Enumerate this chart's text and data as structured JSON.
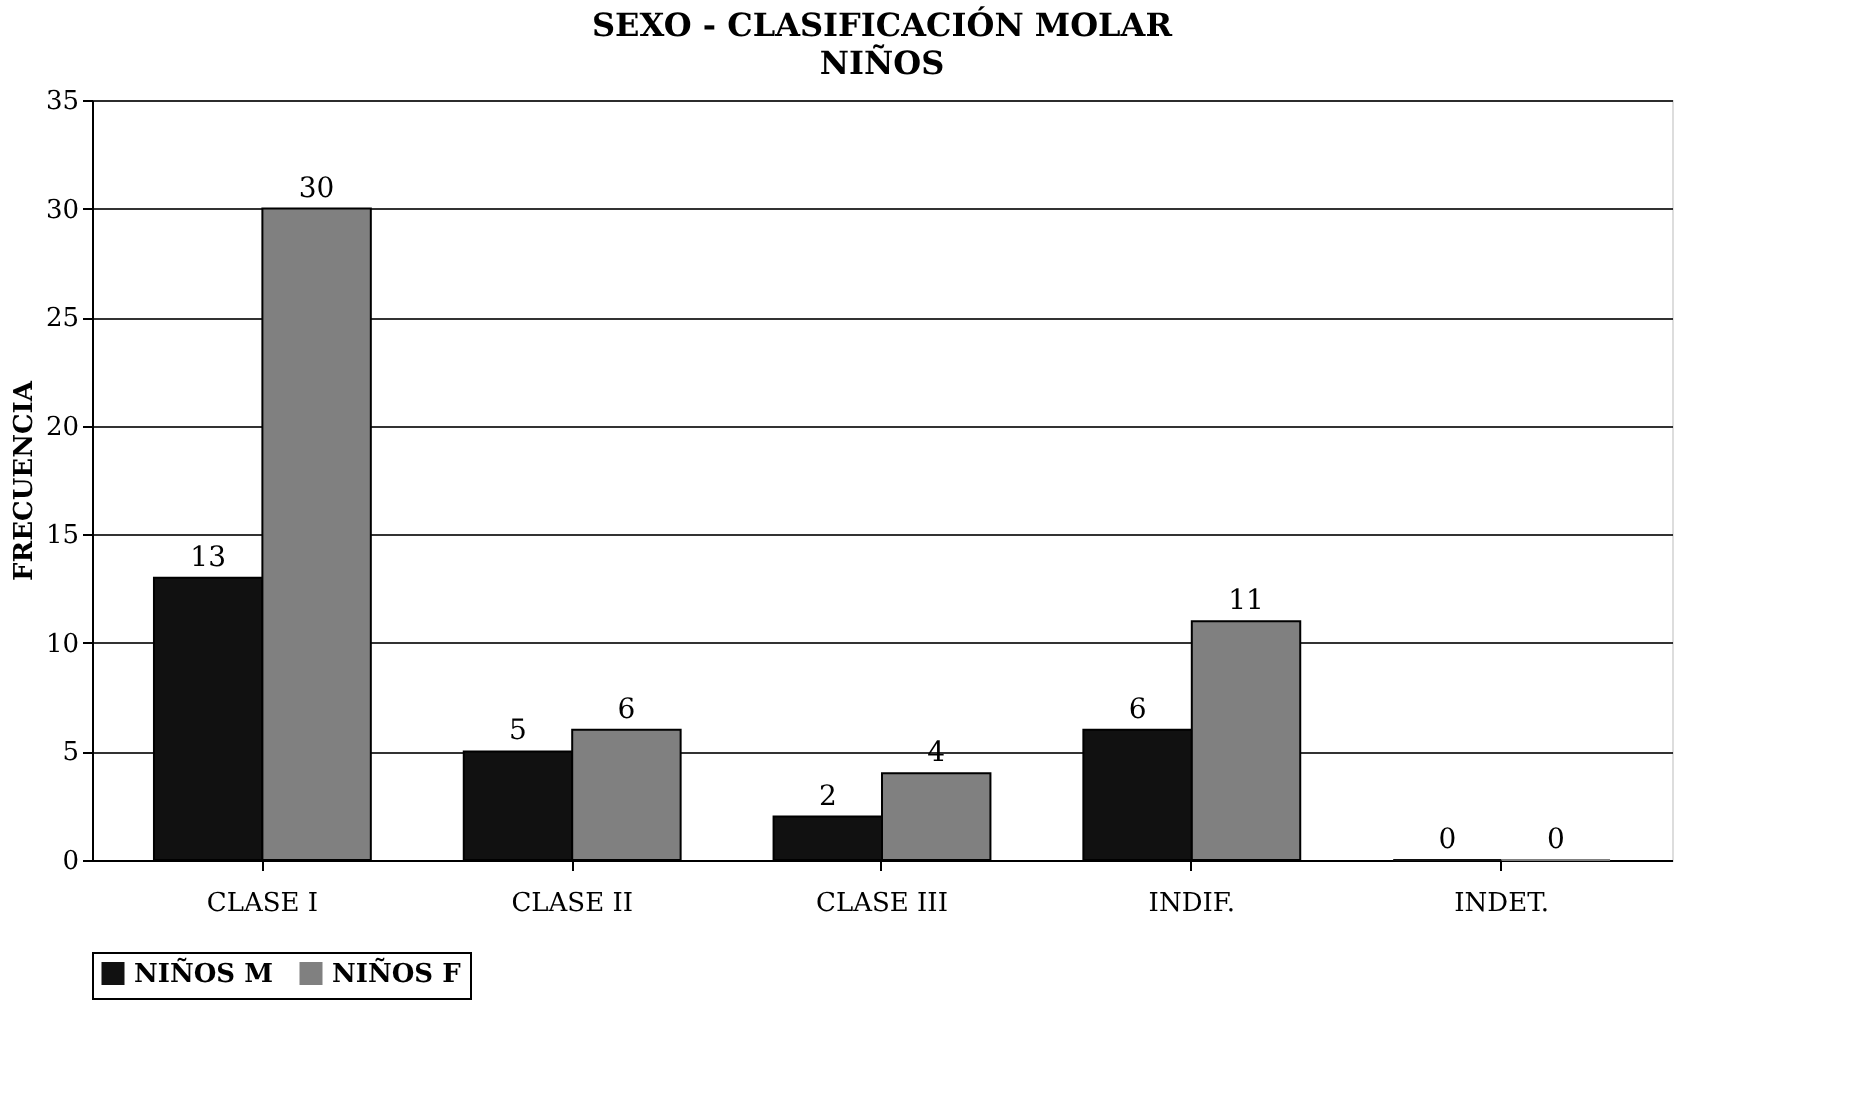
{
  "chart_data": {
    "type": "bar",
    "title": "SEXO - CLASIFICACIÓN MOLAR",
    "subtitle": "NIÑOS",
    "ylabel": "FRECUENCIA",
    "categories": [
      "CLASE I",
      "CLASE II",
      "CLASE III",
      "INDIF.",
      "INDET."
    ],
    "series": [
      {
        "name": "NIÑOS M",
        "color": "#111111",
        "values": [
          13,
          5,
          2,
          6,
          0
        ]
      },
      {
        "name": "NIÑOS F",
        "color": "#808080",
        "values": [
          30,
          6,
          4,
          11,
          0
        ]
      }
    ],
    "ylim": [
      0,
      35
    ],
    "yticks": [
      0,
      5,
      10,
      15,
      20,
      25,
      30,
      35
    ],
    "grid": "y",
    "legend": "bottom",
    "data_labels": true
  }
}
